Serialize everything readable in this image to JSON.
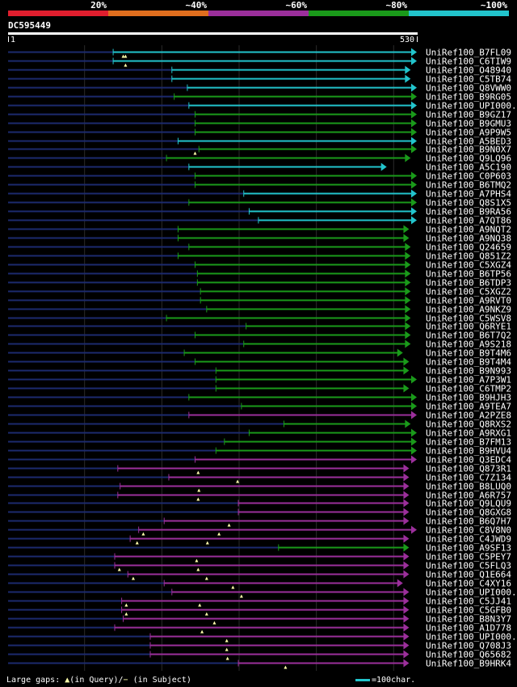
{
  "header": {
    "query_id": "DC595449",
    "axis_start": "1",
    "axis_end": "530"
  },
  "identity_legend": [
    {
      "label": "20%",
      "color": "#e01e2e"
    },
    {
      "label": "~40%",
      "color": "#e06e1e"
    },
    {
      "label": "~60%",
      "color": "#9b2f9b"
    },
    {
      "label": "~80%",
      "color": "#1a9a1a"
    },
    {
      "label": "~100%",
      "color": "#22c4cc"
    }
  ],
  "footer": {
    "gaps_prefix": "Large gaps:",
    "query_gap_text": "(in Query)/",
    "subject_gap_text": "(in Subject)",
    "scale_text": "=100char."
  },
  "chart_data": {
    "type": "alignment",
    "title": "DC595449",
    "query_length": 530,
    "colors": {
      "C": "#22c4cc",
      "G": "#1a9a1a",
      "P": "#9b2f9b"
    },
    "hits": [
      {
        "label": "UniRef100_B7FL09",
        "start": 137,
        "end": 530,
        "color": "C",
        "gaps": [
          153,
          150
        ]
      },
      {
        "label": "UniRef100_C6TIW9",
        "start": 137,
        "end": 530,
        "color": "C",
        "gaps": [
          153
        ]
      },
      {
        "label": "UniRef100_O48940",
        "start": 213,
        "end": 522,
        "color": "C",
        "gaps": []
      },
      {
        "label": "UniRef100_C5TB74",
        "start": 213,
        "end": 522,
        "color": "C",
        "gaps": []
      },
      {
        "label": "UniRef100_Q8VWW0",
        "start": 233,
        "end": 530,
        "color": "C",
        "gaps": []
      },
      {
        "label": "UniRef100_B9RG05",
        "start": 216,
        "end": 530,
        "color": "G",
        "gaps": []
      },
      {
        "label": "UniRef100_UPI000..",
        "start": 235,
        "end": 530,
        "color": "C",
        "gaps": []
      },
      {
        "label": "UniRef100_B9GZ17",
        "start": 243,
        "end": 530,
        "color": "G",
        "gaps": []
      },
      {
        "label": "UniRef100_B9GMU3",
        "start": 243,
        "end": 530,
        "color": "G",
        "gaps": []
      },
      {
        "label": "UniRef100_A9P9W5",
        "start": 243,
        "end": 530,
        "color": "G",
        "gaps": []
      },
      {
        "label": "UniRef100_A5BED3",
        "start": 221,
        "end": 530,
        "color": "C",
        "gaps": []
      },
      {
        "label": "UniRef100_B9N0X7",
        "start": 248,
        "end": 530,
        "color": "G",
        "gaps": [
          243
        ]
      },
      {
        "label": "UniRef100_Q9LQ96",
        "start": 206,
        "end": 522,
        "color": "G",
        "gaps": []
      },
      {
        "label": "UniRef100_A5C190",
        "start": 235,
        "end": 491,
        "color": "C",
        "gaps": []
      },
      {
        "label": "UniRef100_C0P603",
        "start": 243,
        "end": 530,
        "color": "G",
        "gaps": []
      },
      {
        "label": "UniRef100_B6TMQ2",
        "start": 243,
        "end": 530,
        "color": "G",
        "gaps": []
      },
      {
        "label": "UniRef100_A7PHS4",
        "start": 306,
        "end": 530,
        "color": "C",
        "gaps": []
      },
      {
        "label": "UniRef100_Q8S1X5",
        "start": 235,
        "end": 530,
        "color": "G",
        "gaps": []
      },
      {
        "label": "UniRef100_B9RA56",
        "start": 313,
        "end": 530,
        "color": "C",
        "gaps": []
      },
      {
        "label": "UniRef100_A7QT86",
        "start": 325,
        "end": 530,
        "color": "C",
        "gaps": []
      },
      {
        "label": "UniRef100_A9NQT2",
        "start": 221,
        "end": 520,
        "color": "G",
        "gaps": []
      },
      {
        "label": "UniRef100_A9NQ38",
        "start": 221,
        "end": 520,
        "color": "G",
        "gaps": []
      },
      {
        "label": "UniRef100_Q24659",
        "start": 235,
        "end": 522,
        "color": "G",
        "gaps": []
      },
      {
        "label": "UniRef100_Q851Z2",
        "start": 221,
        "end": 522,
        "color": "G",
        "gaps": []
      },
      {
        "label": "UniRef100_C5XGZ4",
        "start": 243,
        "end": 522,
        "color": "G",
        "gaps": []
      },
      {
        "label": "UniRef100_B6TP56",
        "start": 246,
        "end": 522,
        "color": "G",
        "gaps": []
      },
      {
        "label": "UniRef100_B6TDP3",
        "start": 246,
        "end": 522,
        "color": "G",
        "gaps": []
      },
      {
        "label": "UniRef100_C5XGZ2",
        "start": 250,
        "end": 522,
        "color": "G",
        "gaps": []
      },
      {
        "label": "UniRef100_A9RVT0",
        "start": 250,
        "end": 522,
        "color": "G",
        "gaps": []
      },
      {
        "label": "UniRef100_A9NKZ9",
        "start": 258,
        "end": 522,
        "color": "G",
        "gaps": []
      },
      {
        "label": "UniRef100_C5WSV8",
        "start": 206,
        "end": 522,
        "color": "G",
        "gaps": []
      },
      {
        "label": "UniRef100_Q6RYE1",
        "start": 309,
        "end": 522,
        "color": "G",
        "gaps": []
      },
      {
        "label": "UniRef100_B6T7Q2",
        "start": 243,
        "end": 522,
        "color": "G",
        "gaps": []
      },
      {
        "label": "UniRef100_A9S218",
        "start": 306,
        "end": 522,
        "color": "G",
        "gaps": []
      },
      {
        "label": "UniRef100_B9T4M6",
        "start": 229,
        "end": 512,
        "color": "G",
        "gaps": []
      },
      {
        "label": "UniRef100_B9T4M4",
        "start": 243,
        "end": 520,
        "color": "G",
        "gaps": []
      },
      {
        "label": "UniRef100_B9N993",
        "start": 270,
        "end": 520,
        "color": "G",
        "gaps": []
      },
      {
        "label": "UniRef100_A7P3W1",
        "start": 270,
        "end": 530,
        "color": "G",
        "gaps": []
      },
      {
        "label": "UniRef100_C6TMP2",
        "start": 270,
        "end": 520,
        "color": "G",
        "gaps": []
      },
      {
        "label": "UniRef100_B9HJH3",
        "start": 235,
        "end": 530,
        "color": "G",
        "gaps": []
      },
      {
        "label": "UniRef100_A9TEA7",
        "start": 303,
        "end": 530,
        "color": "G",
        "gaps": []
      },
      {
        "label": "UniRef100_A2PZE8",
        "start": 235,
        "end": 530,
        "color": "P",
        "gaps": []
      },
      {
        "label": "UniRef100_Q8RXS2",
        "start": 358,
        "end": 522,
        "color": "G",
        "gaps": []
      },
      {
        "label": "UniRef100_A9RXG1",
        "start": 313,
        "end": 530,
        "color": "G",
        "gaps": []
      },
      {
        "label": "UniRef100_B7FM13",
        "start": 281,
        "end": 530,
        "color": "G",
        "gaps": []
      },
      {
        "label": "UniRef100_B9HVU4",
        "start": 270,
        "end": 530,
        "color": "G",
        "gaps": []
      },
      {
        "label": "UniRef100_Q3EDC4",
        "start": 243,
        "end": 530,
        "color": "P",
        "gaps": []
      },
      {
        "label": "UniRef100_Q873R1",
        "start": 143,
        "end": 520,
        "color": "P",
        "gaps": [
          247
        ]
      },
      {
        "label": "UniRef100_C7Z134",
        "start": 209,
        "end": 520,
        "color": "P",
        "gaps": [
          298
        ]
      },
      {
        "label": "UniRef100_B8LUQ0",
        "start": 146,
        "end": 520,
        "color": "P",
        "gaps": [
          248
        ]
      },
      {
        "label": "UniRef100_A6R757",
        "start": 143,
        "end": 520,
        "color": "P",
        "gaps": [
          247
        ]
      },
      {
        "label": "UniRef100_Q9LQU9",
        "start": 299,
        "end": 520,
        "color": "P",
        "gaps": []
      },
      {
        "label": "UniRef100_Q8GXG8",
        "start": 299,
        "end": 520,
        "color": "P",
        "gaps": []
      },
      {
        "label": "UniRef100_B6Q7H7",
        "start": 203,
        "end": 520,
        "color": "P",
        "gaps": [
          287
        ]
      },
      {
        "label": "UniRef100_C8V8N0",
        "start": 170,
        "end": 530,
        "color": "P",
        "gaps": [
          274,
          176
        ]
      },
      {
        "label": "UniRef100_C4JWD9",
        "start": 159,
        "end": 520,
        "color": "P",
        "gaps": [
          259,
          168
        ]
      },
      {
        "label": "UniRef100_A9SF13",
        "start": 351,
        "end": 520,
        "color": "G",
        "gaps": []
      },
      {
        "label": "UniRef100_C5PEY7",
        "start": 139,
        "end": 520,
        "color": "P",
        "gaps": [
          245
        ]
      },
      {
        "label": "UniRef100_C5FLQ3",
        "start": 139,
        "end": 520,
        "color": "P",
        "gaps": [
          247,
          145
        ]
      },
      {
        "label": "UniRef100_Q1E664",
        "start": 156,
        "end": 520,
        "color": "P",
        "gaps": [
          258,
          163
        ]
      },
      {
        "label": "UniRef100_C4XY16",
        "start": 203,
        "end": 512,
        "color": "P",
        "gaps": [
          292
        ]
      },
      {
        "label": "UniRef100_UPI000..",
        "start": 213,
        "end": 520,
        "color": "P",
        "gaps": [
          303
        ]
      },
      {
        "label": "UniRef100_C5JJ41",
        "start": 148,
        "end": 520,
        "color": "P",
        "gaps": [
          249,
          154
        ]
      },
      {
        "label": "UniRef100_C5GFB0",
        "start": 148,
        "end": 520,
        "color": "P",
        "gaps": [
          258,
          154
        ]
      },
      {
        "label": "UniRef100_B8N3Y7",
        "start": 150,
        "end": 520,
        "color": "P",
        "gaps": [
          268
        ]
      },
      {
        "label": "UniRef100_A1D778",
        "start": 139,
        "end": 520,
        "color": "P",
        "gaps": [
          252
        ]
      },
      {
        "label": "UniRef100_UPI000..",
        "start": 185,
        "end": 520,
        "color": "P",
        "gaps": [
          284
        ]
      },
      {
        "label": "UniRef100_Q708J3",
        "start": 185,
        "end": 520,
        "color": "P",
        "gaps": [
          284
        ]
      },
      {
        "label": "UniRef100_Q65682",
        "start": 185,
        "end": 520,
        "color": "P",
        "gaps": [
          285
        ]
      },
      {
        "label": "UniRef100_B9HRK4",
        "start": 299,
        "end": 520,
        "color": "P",
        "gaps": [
          360
        ]
      }
    ]
  }
}
